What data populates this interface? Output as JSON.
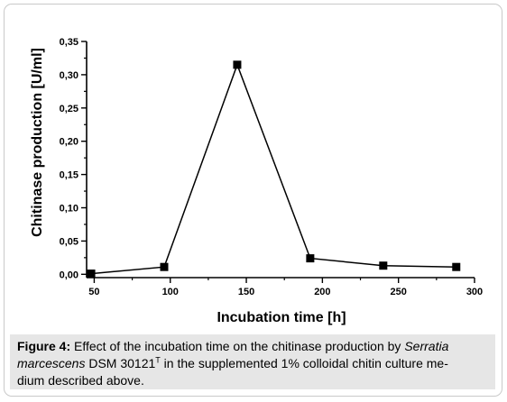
{
  "chart_data": {
    "type": "line",
    "xlabel": "Incubation time [h]",
    "ylabel": "Chitinase production [U/ml]",
    "xlim": [
      45,
      300
    ],
    "ylim": [
      -0.005,
      0.35
    ],
    "x_ticks": [
      50,
      100,
      150,
      200,
      250,
      300
    ],
    "y_ticks": [
      0.0,
      0.05,
      0.1,
      0.15,
      0.2,
      0.25,
      0.3,
      0.35
    ],
    "x_tick_labels": [
      "50",
      "100",
      "150",
      "200",
      "250",
      "300"
    ],
    "y_tick_labels": [
      "0,00",
      "0,05",
      "0,10",
      "0,15",
      "0,20",
      "0,25",
      "0,30",
      "0,35"
    ],
    "grid": false,
    "marker": "square",
    "color": "#000000",
    "series": [
      {
        "x": [
          48,
          96,
          144,
          192,
          240,
          288
        ],
        "y": [
          0.001,
          0.011,
          0.315,
          0.024,
          0.013,
          0.011
        ]
      }
    ]
  },
  "caption": {
    "label": "Figure 4:",
    "text_1": " Effect of the incubation time on the chitinase production by ",
    "species_line1": "Serratia",
    "species_line2": "marcescens",
    "text_2": " DSM 30121",
    "superscript": "T",
    "text_3": " in the supplemented 1% colloidal chitin culture me-",
    "text_4": "dium described above."
  }
}
